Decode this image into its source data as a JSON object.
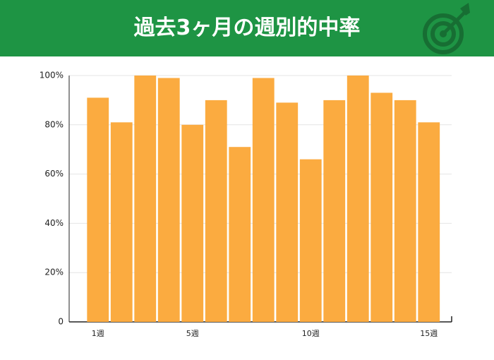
{
  "chart_data": {
    "type": "bar",
    "title": "過去3ヶ月の週別的中率",
    "categories": [
      "1週",
      null,
      null,
      null,
      "5週",
      null,
      null,
      null,
      null,
      "10週",
      null,
      null,
      null,
      null,
      "15週"
    ],
    "values": [
      91,
      81,
      100,
      99,
      80,
      90,
      71,
      99,
      89,
      66,
      90,
      100,
      93,
      90,
      81
    ],
    "color": "#fbab40",
    "ylim": [
      0,
      100
    ],
    "yticks": [
      0,
      {
        "value": 20,
        "label": "20%"
      },
      {
        "value": 40,
        "label": "40%"
      },
      {
        "value": 60,
        "label": "60%"
      },
      {
        "value": 80,
        "label": "80%"
      },
      {
        "value": 100,
        "label": "100%"
      }
    ],
    "grid": true
  }
}
